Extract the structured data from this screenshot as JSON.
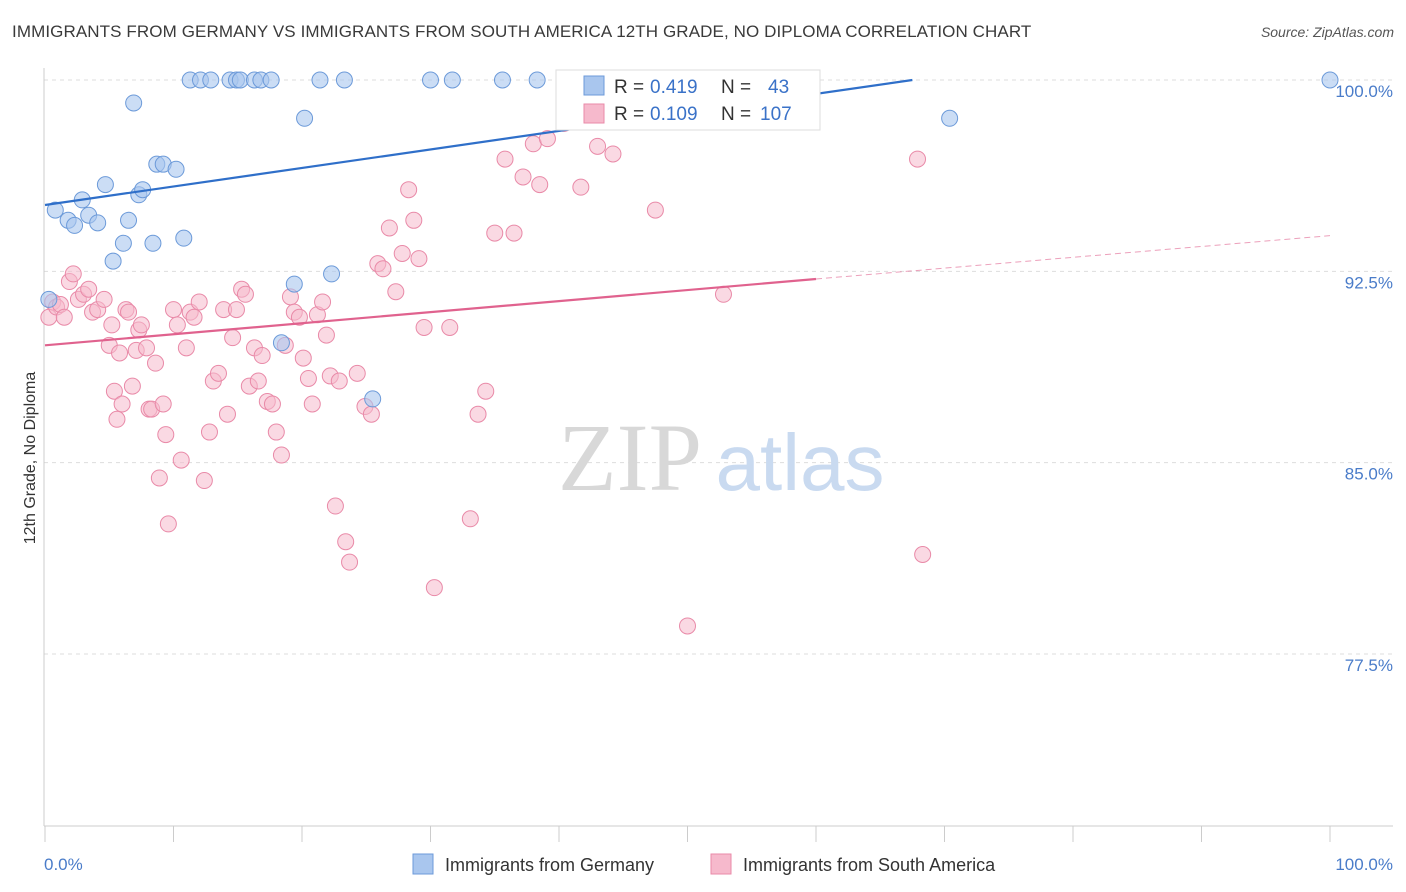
{
  "title": "IMMIGRANTS FROM GERMANY VS IMMIGRANTS FROM SOUTH AMERICA 12TH GRADE, NO DIPLOMA CORRELATION CHART",
  "source": "Source: ZipAtlas.com",
  "watermark": {
    "zip": "ZIP",
    "atlas": "atlas"
  },
  "colors": {
    "germany_fill": "#a9c6ee",
    "germany_stroke": "#6c9ad9",
    "germany_line": "#2f6fc9",
    "sa_fill": "#f6b9cc",
    "sa_stroke": "#e98aa8",
    "sa_line": "#e0628e",
    "tick_text": "#4a7cc9",
    "grid": "#dddddd"
  },
  "stats": [
    {
      "r_label": "R =",
      "r_value": "0.419",
      "n_label": "N =",
      "n_value": "43"
    },
    {
      "r_label": "R =",
      "r_value": "0.109",
      "n_label": "N =",
      "n_value": "107"
    }
  ],
  "chart_data": {
    "type": "scatter",
    "title": "IMMIGRANTS FROM GERMANY VS IMMIGRANTS FROM SOUTH AMERICA 12TH GRADE, NO DIPLOMA CORRELATION CHART",
    "xlabel": "",
    "ylabel": "12th Grade, No Diploma",
    "xlim": [
      0,
      100
    ],
    "ylim": [
      70,
      100.8
    ],
    "x_tick_labels": [
      "0.0%",
      "100.0%"
    ],
    "y_ticks": [
      77.5,
      85.0,
      92.5,
      100.0
    ],
    "y_tick_labels": [
      "77.5%",
      "85.0%",
      "92.5%",
      "100.0%"
    ],
    "grid": "horizontal dashed",
    "legend": "bottom-center",
    "series": [
      {
        "name": "Immigrants from Germany",
        "r": 0.419,
        "n": 43,
        "trend": {
          "x": [
            0,
            67.5
          ],
          "y": [
            95.1,
            100.0
          ]
        },
        "x": [
          0.3,
          0.8,
          1.8,
          2.3,
          2.9,
          3.4,
          4.1,
          4.7,
          5.3,
          6.1,
          6.5,
          6.9,
          7.3,
          7.6,
          8.4,
          8.7,
          9.2,
          10.2,
          10.8,
          11.3,
          12.1,
          12.9,
          14.4,
          14.9,
          15.2,
          16.3,
          16.8,
          17.6,
          18.4,
          19.4,
          20.2,
          21.4,
          22.3,
          23.3,
          25.5,
          30.0,
          31.7,
          35.6,
          38.3,
          52.3,
          55.8,
          70.4,
          100.0
        ],
        "y": [
          91.4,
          94.9,
          94.5,
          94.3,
          95.3,
          94.7,
          94.4,
          95.9,
          92.9,
          93.6,
          94.5,
          99.1,
          95.5,
          95.7,
          93.6,
          96.7,
          96.7,
          96.5,
          93.8,
          100.0,
          100.0,
          100.0,
          100.0,
          100.0,
          100.0,
          100.0,
          100.0,
          100.0,
          89.7,
          92.0,
          98.5,
          100.0,
          92.4,
          100.0,
          87.5,
          100.0,
          100.0,
          100.0,
          100.0,
          99.9,
          100.0,
          98.5,
          100.0
        ]
      },
      {
        "name": "Immigrants from South America",
        "r": 0.109,
        "n": 107,
        "trend": {
          "x": [
            0,
            60
          ],
          "y": [
            89.6,
            92.2
          ]
        },
        "trend_extension": {
          "x": [
            60,
            100
          ],
          "y": [
            92.2,
            93.9
          ]
        },
        "x": [
          0.3,
          0.6,
          0.9,
          1.2,
          1.5,
          1.9,
          2.2,
          2.6,
          3.0,
          3.4,
          3.7,
          4.1,
          4.6,
          5.0,
          5.2,
          5.4,
          5.6,
          5.8,
          6.0,
          6.3,
          6.5,
          6.8,
          7.1,
          7.3,
          7.5,
          7.9,
          8.1,
          8.3,
          8.6,
          8.9,
          9.2,
          9.4,
          9.6,
          10.0,
          10.3,
          10.6,
          11.0,
          11.3,
          11.6,
          12.0,
          12.4,
          12.8,
          13.1,
          13.5,
          13.9,
          14.2,
          14.6,
          14.9,
          15.3,
          15.6,
          15.9,
          16.3,
          16.6,
          16.9,
          17.3,
          17.7,
          18.0,
          18.4,
          18.7,
          19.1,
          19.4,
          19.8,
          20.1,
          20.5,
          20.8,
          21.2,
          21.6,
          21.9,
          22.2,
          22.6,
          22.9,
          23.4,
          23.7,
          24.3,
          24.9,
          25.4,
          25.9,
          26.3,
          26.8,
          27.3,
          27.8,
          28.3,
          28.7,
          29.1,
          29.5,
          30.3,
          31.5,
          33.1,
          33.7,
          34.3,
          35.0,
          35.8,
          36.5,
          37.2,
          38.0,
          38.5,
          39.1,
          40.4,
          41.0,
          41.7,
          43.0,
          44.2,
          47.5,
          50.0,
          52.8,
          67.9,
          68.3
        ],
        "y": [
          90.7,
          91.3,
          91.1,
          91.2,
          90.7,
          92.1,
          92.4,
          91.4,
          91.6,
          91.8,
          90.9,
          91.0,
          91.4,
          89.6,
          90.4,
          87.8,
          86.7,
          89.3,
          87.3,
          91.0,
          90.9,
          88.0,
          89.4,
          90.2,
          90.4,
          89.5,
          87.1,
          87.1,
          88.9,
          84.4,
          87.3,
          86.1,
          82.6,
          91.0,
          90.4,
          85.1,
          89.5,
          90.9,
          90.7,
          91.3,
          84.3,
          86.2,
          88.2,
          88.5,
          91.0,
          86.9,
          89.9,
          91.0,
          91.8,
          91.6,
          88.0,
          89.5,
          88.2,
          89.2,
          87.4,
          87.3,
          86.2,
          85.3,
          89.6,
          91.5,
          90.9,
          90.7,
          89.1,
          88.3,
          87.3,
          90.8,
          91.3,
          90.0,
          88.4,
          83.3,
          88.2,
          81.9,
          81.1,
          88.5,
          87.2,
          86.9,
          92.8,
          92.6,
          94.2,
          91.7,
          93.2,
          95.7,
          94.5,
          93.0,
          90.3,
          80.1,
          90.3,
          82.8,
          86.9,
          87.8,
          94.0,
          96.9,
          94.0,
          96.2,
          97.5,
          95.9,
          97.7,
          98.3,
          99.2,
          95.8,
          97.4,
          97.1,
          94.9,
          78.6,
          91.6,
          96.9,
          81.4
        ]
      }
    ]
  },
  "legend": {
    "items": [
      {
        "label": "Immigrants from Germany"
      },
      {
        "label": "Immigrants from South America"
      }
    ]
  }
}
